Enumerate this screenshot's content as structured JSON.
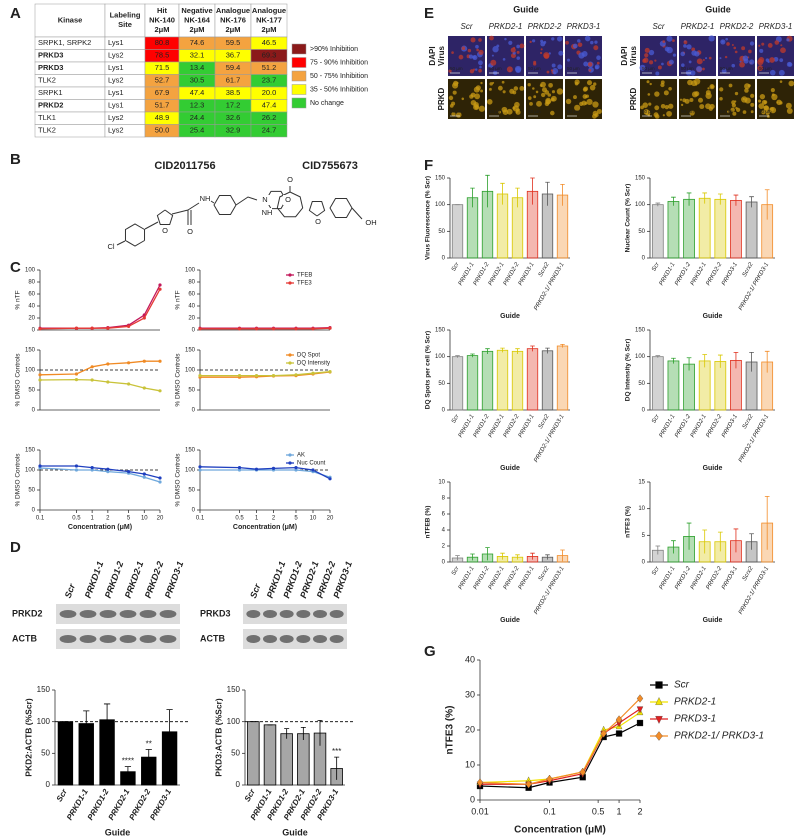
{
  "panels": [
    "A",
    "B",
    "C",
    "D",
    "E",
    "F",
    "G"
  ],
  "table": {
    "columns": [
      [
        "Kinase"
      ],
      [
        "Labeling",
        "Site"
      ],
      [
        "Hit",
        "NK-140",
        "2μM"
      ],
      [
        "Negative",
        "NK-164",
        "2μM"
      ],
      [
        "Analogue",
        "NK-176",
        "2μM"
      ],
      [
        "Analogue",
        "NK-177",
        "2μM"
      ]
    ],
    "rows": [
      {
        "cells": [
          "SRPK1, SRPK2",
          "Lys1",
          "80.8",
          "74.6",
          "59.5",
          "46.5"
        ],
        "colors": [
          "#ff0000",
          "#f4a340",
          "#f4a340",
          "#ffff00"
        ]
      },
      {
        "cells": [
          "PRKD3",
          "Lys2",
          "78.5",
          "32.1",
          "36.7",
          "69.3"
        ],
        "colors": [
          "#ff0000",
          "#ffff00",
          "#ffff00",
          "#8b1a1a"
        ],
        "bold": true
      },
      {
        "cells": [
          "PRKD3",
          "Lys1",
          "71.5",
          "13.4",
          "59.4",
          "51.2"
        ],
        "colors": [
          "#ffff00",
          "#33cc33",
          "#f4a340",
          "#f4a340"
        ],
        "bold": true
      },
      {
        "cells": [
          "TLK2",
          "Lys2",
          "52.7",
          "30.5",
          "61.7",
          "23.7"
        ],
        "colors": [
          "#f4a340",
          "#33cc33",
          "#f4a340",
          "#33cc33"
        ]
      },
      {
        "cells": [
          "SRPK1",
          "Lys1",
          "67.9",
          "47.4",
          "38.5",
          "20.0"
        ],
        "colors": [
          "#f4a340",
          "#ffff00",
          "#ffff00",
          "#ffff00"
        ]
      },
      {
        "cells": [
          "PRKD2",
          "Lys1",
          "51.7",
          "12.3",
          "17.2",
          "47.4"
        ],
        "colors": [
          "#f4a340",
          "#33cc33",
          "#33cc33",
          "#ffff00"
        ],
        "bold": true
      },
      {
        "cells": [
          "TLK1",
          "Lys2",
          "48.9",
          "24.4",
          "32.6",
          "26.2"
        ],
        "colors": [
          "#ffff00",
          "#33cc33",
          "#33cc33",
          "#33cc33"
        ]
      },
      {
        "cells": [
          "TLK2",
          "Lys2",
          "50.0",
          "25.4",
          "32.9",
          "24.7"
        ],
        "colors": [
          "#f4a340",
          "#33cc33",
          "#33cc33",
          "#33cc33"
        ]
      }
    ],
    "legend": [
      {
        "label": ">90% Inhibition",
        "color": "#8b1a1a"
      },
      {
        "label": "75 - 90% Inhibition",
        "color": "#ff0000"
      },
      {
        "label": "50 - 75% Inhibition",
        "color": "#f4a340"
      },
      {
        "label": "35 - 50% Inhibition",
        "color": "#ffff00"
      },
      {
        "label": "No change",
        "color": "#33cc33"
      }
    ]
  },
  "structures": [
    {
      "title": "CID2011756",
      "atoms": [
        "Cl",
        "O",
        "O",
        "NH",
        "N",
        "O"
      ]
    },
    {
      "title": "CID755673",
      "atoms": [
        "O",
        "NH",
        "O",
        "OH"
      ]
    }
  ],
  "blots": [
    {
      "lanes": [
        "Scr",
        "PRKD1-1",
        "PRKD1-2",
        "PRKD2-1",
        "PRKD2-2",
        "PRKD3-1"
      ],
      "lane_colors": [
        "#000000",
        "#000000",
        "#000000",
        "#e8a317",
        "#e8a317",
        "#000000"
      ],
      "rows": [
        "PRKD2",
        "ACTB"
      ]
    },
    {
      "lanes": [
        "Scr",
        "PRKD1-1",
        "PRKD1-2",
        "PRKD2-1",
        "PRKD2-2",
        "PRKD3-1"
      ],
      "lane_colors": [
        "#000000",
        "#000000",
        "#000000",
        "#000000",
        "#000000",
        "#c00000"
      ],
      "rows": [
        "PRKD3",
        "ACTB"
      ]
    }
  ],
  "micrographs": {
    "title": "Guide",
    "lanes": [
      "Scr",
      "PRKD2-1",
      "PRKD2-2",
      "PRKD3-1"
    ],
    "rows": [
      [
        "DAPI",
        "Virus"
      ],
      [
        "PRKD"
      ]
    ],
    "scale_bar": "50 µm"
  },
  "chart_data": [
    {
      "type": "line",
      "xscale": "log",
      "x": [
        0.1,
        0.5,
        1,
        2,
        5,
        10,
        20
      ],
      "xlim": [
        0.1,
        20
      ],
      "ylabel": "% nTF",
      "ylim": [
        0,
        100
      ],
      "yticks": [
        0,
        20,
        40,
        60,
        80,
        100
      ],
      "series": [
        {
          "color": "#c2185b",
          "values": [
            3,
            3,
            3,
            4,
            8,
            25,
            75
          ]
        },
        {
          "color": "#e53935",
          "values": [
            2,
            3,
            3,
            3,
            6,
            20,
            68
          ]
        }
      ]
    },
    {
      "type": "line",
      "xscale": "log",
      "x": [
        0.1,
        0.5,
        1,
        2,
        5,
        10,
        20
      ],
      "xlim": [
        0.1,
        20
      ],
      "ylabel": "% nTF",
      "ylim": [
        0,
        100
      ],
      "yticks": [
        0,
        20,
        40,
        60,
        80,
        100
      ],
      "legend": "upper right",
      "series": [
        {
          "name": "TFEB",
          "color": "#c2185b",
          "values": [
            3,
            3,
            3,
            3,
            3,
            3,
            4
          ]
        },
        {
          "name": "TFE3",
          "color": "#e53935",
          "values": [
            2,
            2,
            2,
            2,
            2,
            2,
            3
          ]
        }
      ]
    },
    {
      "type": "line",
      "xscale": "log",
      "x": [
        0.1,
        0.5,
        1,
        2,
        5,
        10,
        20
      ],
      "xlim": [
        0.1,
        20
      ],
      "ylabel": "% DMSO Controls",
      "ylim": [
        0,
        150
      ],
      "yticks": [
        0,
        50,
        100,
        150
      ],
      "reference_line": 100,
      "series": [
        {
          "color": "#f08a24",
          "values": [
            88,
            90,
            108,
            115,
            118,
            122,
            122
          ]
        },
        {
          "color": "#c9c33a",
          "values": [
            75,
            76,
            75,
            70,
            65,
            55,
            48
          ]
        }
      ]
    },
    {
      "type": "line",
      "xscale": "log",
      "x": [
        0.1,
        0.5,
        1,
        2,
        5,
        10,
        20
      ],
      "xlim": [
        0.1,
        20
      ],
      "ylabel": "% DMSO Controls",
      "ylim": [
        0,
        150
      ],
      "yticks": [
        0,
        50,
        100,
        150
      ],
      "reference_line": 100,
      "legend": "upper right",
      "series": [
        {
          "name": "DQ Spot",
          "color": "#f08a24",
          "values": [
            82,
            82,
            83,
            85,
            86,
            90,
            95
          ]
        },
        {
          "name": "DQ Intensity",
          "color": "#c9c33a",
          "values": [
            86,
            86,
            86,
            86,
            88,
            92,
            96
          ]
        }
      ]
    },
    {
      "type": "line",
      "xscale": "log",
      "x": [
        0.1,
        0.5,
        1,
        2,
        5,
        10,
        20
      ],
      "xlim": [
        0.1,
        20
      ],
      "xticks": [
        0.1,
        0.5,
        1,
        2,
        5,
        10,
        20
      ],
      "xlabel": "Concentration (μM)",
      "ylabel": "% DMSO Controls",
      "ylim": [
        0,
        150
      ],
      "yticks": [
        0,
        50,
        100,
        150
      ],
      "reference_line": 100,
      "series": [
        {
          "color": "#6fa8dc",
          "values": [
            105,
            100,
            100,
            96,
            92,
            82,
            70
          ]
        },
        {
          "color": "#1f3fbf",
          "values": [
            110,
            110,
            106,
            102,
            96,
            90,
            80
          ]
        }
      ]
    },
    {
      "type": "line",
      "xscale": "log",
      "x": [
        0.1,
        0.5,
        1,
        2,
        5,
        10,
        20
      ],
      "xlim": [
        0.1,
        20
      ],
      "xticks": [
        0.1,
        0.5,
        1,
        2,
        5,
        10,
        20
      ],
      "xlabel": "Concentration (μM)",
      "ylabel": "% DMSO Controls",
      "ylim": [
        0,
        150
      ],
      "yticks": [
        0,
        50,
        100,
        150
      ],
      "reference_line": 100,
      "legend": "upper right",
      "series": [
        {
          "name": "AK",
          "color": "#6fa8dc",
          "values": [
            100,
            100,
            100,
            100,
            100,
            96,
            82
          ]
        },
        {
          "name": "Nuc Count",
          "color": "#1f3fbf",
          "values": [
            108,
            106,
            102,
            104,
            106,
            100,
            78
          ]
        }
      ]
    },
    {
      "type": "bar",
      "categories": [
        "Scr",
        "PRKD1-1",
        "PRKD1-2",
        "PRKD2-1",
        "PRKD2-2",
        "PRKD3-1"
      ],
      "values": [
        100,
        97,
        103,
        21,
        44,
        84
      ],
      "errors": [
        0,
        20,
        25,
        8,
        12,
        35
      ],
      "color": "#000000",
      "ylabel": "PKD2:ACTB (%Scr)",
      "xlabel": "Guide",
      "ylim": [
        0,
        150
      ],
      "yticks": [
        0,
        50,
        100,
        150
      ],
      "reference_line": 100,
      "annotations": [
        {
          "category": "PRKD2-1",
          "text": "****"
        },
        {
          "category": "PRKD2-2",
          "text": "**"
        }
      ]
    },
    {
      "type": "bar",
      "categories": [
        "Scr",
        "PRKD1-1",
        "PRKD1-2",
        "PRKD2-1",
        "PRKD2-2",
        "PRKD3-1"
      ],
      "values": [
        100,
        95,
        81,
        81,
        82,
        26
      ],
      "errors": [
        0,
        0,
        8,
        10,
        20,
        18
      ],
      "color": "#a6a6a6",
      "ylabel": "PKD3:ACTB (%Scr)",
      "xlabel": "Guide",
      "ylim": [
        0,
        150
      ],
      "yticks": [
        0,
        50,
        100,
        150
      ],
      "reference_line": 100,
      "annotations": [
        {
          "category": "PRKD3-1",
          "text": "***"
        }
      ]
    },
    {
      "type": "bar",
      "categories": [
        "Scr",
        "PRKD1-1",
        "PRKD1-2",
        "PRKD2-1",
        "PRKD2-2",
        "PRKD3-1",
        "Scrx2",
        "PRKD2-1/ PRKD3-1"
      ],
      "values": [
        100,
        113,
        125,
        120,
        113,
        125,
        120,
        118
      ],
      "errors": [
        0,
        18,
        30,
        20,
        18,
        25,
        22,
        20
      ],
      "colors": [
        "#808080",
        "#2ca02c",
        "#2ca02c",
        "#d9c800",
        "#d9c800",
        "#e0301e",
        "#595959",
        "#f28c28"
      ],
      "ylabel": "Virus Fluorescence (% Scr)",
      "xlabel": "Guide",
      "ylim": [
        0,
        150
      ],
      "yticks": [
        0,
        50,
        100,
        150
      ]
    },
    {
      "type": "bar",
      "categories": [
        "Scr",
        "PRKD1-1",
        "PRKD1-2",
        "PRKD2-1",
        "PRKD2-2",
        "PRKD3-1",
        "Scrx2",
        "PRKD2-1/ PRKD3-1"
      ],
      "values": [
        100,
        106,
        110,
        112,
        110,
        108,
        105,
        100
      ],
      "errors": [
        3,
        8,
        12,
        10,
        10,
        10,
        10,
        28
      ],
      "colors": [
        "#808080",
        "#2ca02c",
        "#2ca02c",
        "#d9c800",
        "#d9c800",
        "#e0301e",
        "#595959",
        "#f28c28"
      ],
      "ylabel": "Nuclear Count (% Scr)",
      "xlabel": "Guide",
      "ylim": [
        0,
        150
      ],
      "yticks": [
        0,
        50,
        100,
        150
      ]
    },
    {
      "type": "bar",
      "categories": [
        "Scr",
        "PRKD1-1",
        "PRKD1-2",
        "PRKD2-1",
        "PRKD2-2",
        "PRKD3-1",
        "Scrx2",
        "PRKD2-1/ PRKD3-1"
      ],
      "values": [
        100,
        102,
        110,
        112,
        110,
        115,
        111,
        120
      ],
      "errors": [
        2,
        3,
        5,
        4,
        5,
        5,
        5,
        3
      ],
      "colors": [
        "#808080",
        "#2ca02c",
        "#2ca02c",
        "#d9c800",
        "#d9c800",
        "#e0301e",
        "#595959",
        "#f28c28"
      ],
      "ylabel": "DQ Spots per cell (% Scr)",
      "xlabel": "Guide",
      "ylim": [
        0,
        150
      ],
      "yticks": [
        0,
        50,
        100,
        150
      ]
    },
    {
      "type": "bar",
      "categories": [
        "Scr",
        "PRKD1-1",
        "PRKD1-2",
        "PRKD2-1",
        "PRKD2-2",
        "PRKD3-1",
        "Scrx2",
        "PRKD2-1/ PRKD3-1"
      ],
      "values": [
        100,
        92,
        86,
        92,
        91,
        93,
        90,
        90
      ],
      "errors": [
        2,
        5,
        12,
        12,
        12,
        15,
        18,
        20
      ],
      "colors": [
        "#808080",
        "#2ca02c",
        "#2ca02c",
        "#d9c800",
        "#d9c800",
        "#e0301e",
        "#595959",
        "#f28c28"
      ],
      "ylabel": "DQ Intensity (% Scr)",
      "xlabel": "Guide",
      "ylim": [
        0,
        150
      ],
      "yticks": [
        0,
        50,
        100,
        150
      ]
    },
    {
      "type": "bar",
      "categories": [
        "Scr",
        "PRKD1-1",
        "PRKD1-2",
        "PRKD2-1",
        "PRKD2-2",
        "PRKD3-1",
        "Scrx2",
        "PRKD2-1/ PRKD3-1"
      ],
      "values": [
        0.5,
        0.6,
        1.0,
        0.7,
        0.6,
        0.7,
        0.6,
        0.8
      ],
      "errors": [
        0.3,
        0.4,
        0.8,
        0.4,
        0.3,
        0.4,
        0.3,
        0.7
      ],
      "colors": [
        "#808080",
        "#2ca02c",
        "#2ca02c",
        "#d9c800",
        "#d9c800",
        "#e0301e",
        "#595959",
        "#f28c28"
      ],
      "ylabel": "nTFEB (%)",
      "xlabel": "Guide",
      "ylim": [
        0,
        10
      ],
      "yticks": [
        0,
        2,
        4,
        6,
        8,
        10
      ]
    },
    {
      "type": "bar",
      "categories": [
        "Scr",
        "PRKD1-1",
        "PRKD1-2",
        "PRKD2-1",
        "PRKD2-2",
        "PRKD3-1",
        "Scrx2",
        "PRKD2-1/ PRKD3-1"
      ],
      "values": [
        2.2,
        2.8,
        4.8,
        3.8,
        3.8,
        4.0,
        3.8,
        7.3
      ],
      "errors": [
        0.8,
        1.2,
        2.5,
        2.2,
        1.8,
        2.2,
        1.5,
        5
      ],
      "colors": [
        "#808080",
        "#2ca02c",
        "#2ca02c",
        "#d9c800",
        "#d9c800",
        "#e0301e",
        "#595959",
        "#f28c28"
      ],
      "ylabel": "nTFE3  (%)",
      "xlabel": "Guide",
      "ylim": [
        0,
        15
      ],
      "yticks": [
        0,
        5,
        10,
        15
      ]
    },
    {
      "type": "scatter",
      "xscale": "log",
      "x": [
        0.01,
        0.05,
        0.1,
        0.3,
        0.6,
        1,
        2
      ],
      "xlim": [
        0.01,
        2
      ],
      "xticks": [
        0.01,
        0.1,
        0.5,
        1,
        2
      ],
      "xlabel": "Concentration (μM)",
      "ylabel": "nTFE3  (%)",
      "ylim": [
        0,
        40
      ],
      "yticks": [
        0,
        10,
        20,
        30,
        40
      ],
      "legend": "right",
      "series": [
        {
          "name": "Scr",
          "color": "#000000",
          "marker": "square",
          "values": [
            4,
            3.5,
            5,
            6.5,
            18,
            19,
            22
          ]
        },
        {
          "name": "PRKD2-1",
          "color": "#f2e300",
          "marker": "triangle-up",
          "values": [
            5,
            5.5,
            6,
            8,
            20,
            21,
            25
          ]
        },
        {
          "name": "PRKD3-1",
          "color": "#e02020",
          "marker": "triangle-down",
          "values": [
            4.5,
            4.5,
            5.5,
            7.5,
            19,
            22,
            26
          ]
        },
        {
          "name": "PRKD2-1/ PRKD3-1",
          "color": "#f28c28",
          "marker": "diamond",
          "values": [
            5,
            4.5,
            6,
            8,
            19,
            23,
            29
          ]
        }
      ]
    }
  ]
}
